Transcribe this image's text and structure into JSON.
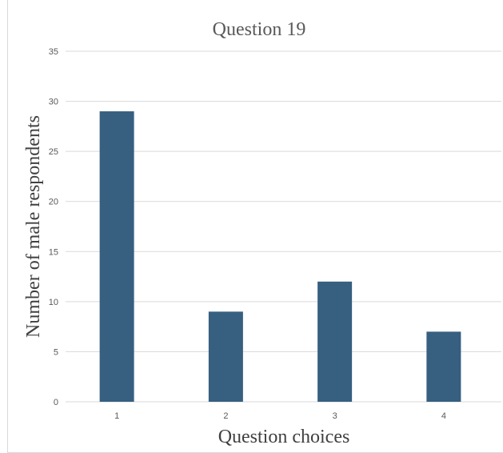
{
  "chart_data": {
    "type": "bar",
    "title": "Question 19",
    "xlabel": "Question choices",
    "ylabel": "Number of male respondents",
    "categories": [
      "1",
      "2",
      "3",
      "4"
    ],
    "values": [
      29,
      9,
      12,
      7
    ],
    "ylim": [
      0,
      35
    ],
    "yticks": [
      0,
      5,
      10,
      15,
      20,
      25,
      30,
      35
    ],
    "grid": true,
    "legend": "none",
    "bar_color": "#365f80",
    "grid_color": "#d9d9d9"
  }
}
